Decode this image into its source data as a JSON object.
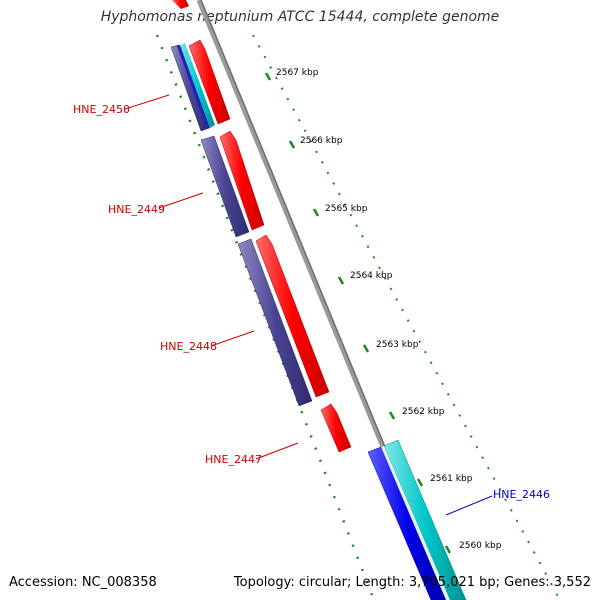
{
  "title": "Hyphomonas neptunium ATCC 15444, complete genome",
  "footer": {
    "accession": "Accession: NC_008358",
    "summary": "Topology: circular; Length: 3,705,021 bp; Genes: 3,552"
  },
  "colors": {
    "forward_cds": "#ff0000",
    "reverse_cds": "#4a4593",
    "reverse_blue": "#0000ee",
    "cyan_feature": "#00c8c8",
    "backbone": "#8a8a8a",
    "tick": "#1a8a1a",
    "label_red": "#cc0000",
    "label_blue": "#0000cc"
  },
  "ticks": [
    {
      "label": "2567 kbp"
    },
    {
      "label": "2566 kbp"
    },
    {
      "label": "2565 kbp"
    },
    {
      "label": "2564 kbp"
    },
    {
      "label": "2563 kbp"
    },
    {
      "label": "2562 kbp"
    },
    {
      "label": "2561 kbp"
    },
    {
      "label": "2560 kbp"
    }
  ],
  "genes": [
    {
      "name": "HNE_2450",
      "color": "red"
    },
    {
      "name": "HNE_2449",
      "color": "red"
    },
    {
      "name": "HNE_2448",
      "color": "red"
    },
    {
      "name": "HNE_2447",
      "color": "red"
    },
    {
      "name": "HNE_2446",
      "color": "blue"
    }
  ]
}
